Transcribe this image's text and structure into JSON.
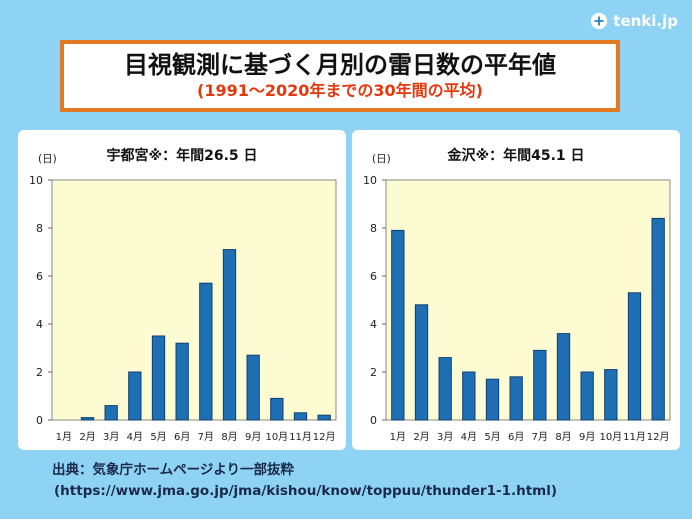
{
  "logo": {
    "text": "tenki.jp",
    "icon": "tenki-logo-icon"
  },
  "header": {
    "title": "目視観測に基づく月別の雷日数の平年値",
    "subtitle": "(1991～2020年までの30年間の平均)"
  },
  "chart_data": [
    {
      "type": "bar",
      "title": "宇都宮※：年間26.5 日",
      "ylabel": "(日)",
      "xlabel": "",
      "ylim": [
        0,
        10
      ],
      "yticks": [
        0,
        2,
        4,
        6,
        8,
        10
      ],
      "grid": false,
      "categories": [
        "1月",
        "2月",
        "3月",
        "4月",
        "5月",
        "6月",
        "7月",
        "8月",
        "9月",
        "10月",
        "11月",
        "12月"
      ],
      "values": [
        0.0,
        0.1,
        0.6,
        2.0,
        3.5,
        3.2,
        5.7,
        7.1,
        2.7,
        0.9,
        0.3,
        0.2
      ],
      "colors": {
        "bar": "#1f6fb5",
        "bar_edge": "#0d3f73",
        "plot_bg": "#fdfbd2"
      }
    },
    {
      "type": "bar",
      "title": "金沢※：年間45.1 日",
      "ylabel": "(日)",
      "xlabel": "",
      "ylim": [
        0,
        10
      ],
      "yticks": [
        0,
        2,
        4,
        6,
        8,
        10
      ],
      "grid": false,
      "categories": [
        "1月",
        "2月",
        "3月",
        "4月",
        "5月",
        "6月",
        "7月",
        "8月",
        "9月",
        "10月",
        "11月",
        "12月"
      ],
      "values": [
        7.9,
        4.8,
        2.6,
        2.0,
        1.7,
        1.8,
        2.9,
        3.6,
        2.0,
        2.1,
        5.3,
        8.4
      ],
      "colors": {
        "bar": "#1f6fb5",
        "bar_edge": "#0d3f73",
        "plot_bg": "#fdfbd2"
      }
    }
  ],
  "source": {
    "line1": "出典：気象庁ホームページより一部抜粋",
    "line2": "(https://www.jma.go.jp/jma/kishou/know/toppuu/thunder1-1.html)"
  },
  "colors": {
    "background": "#8fd3f4",
    "title_border": "#e07a24",
    "subtitle": "#e4380f"
  }
}
